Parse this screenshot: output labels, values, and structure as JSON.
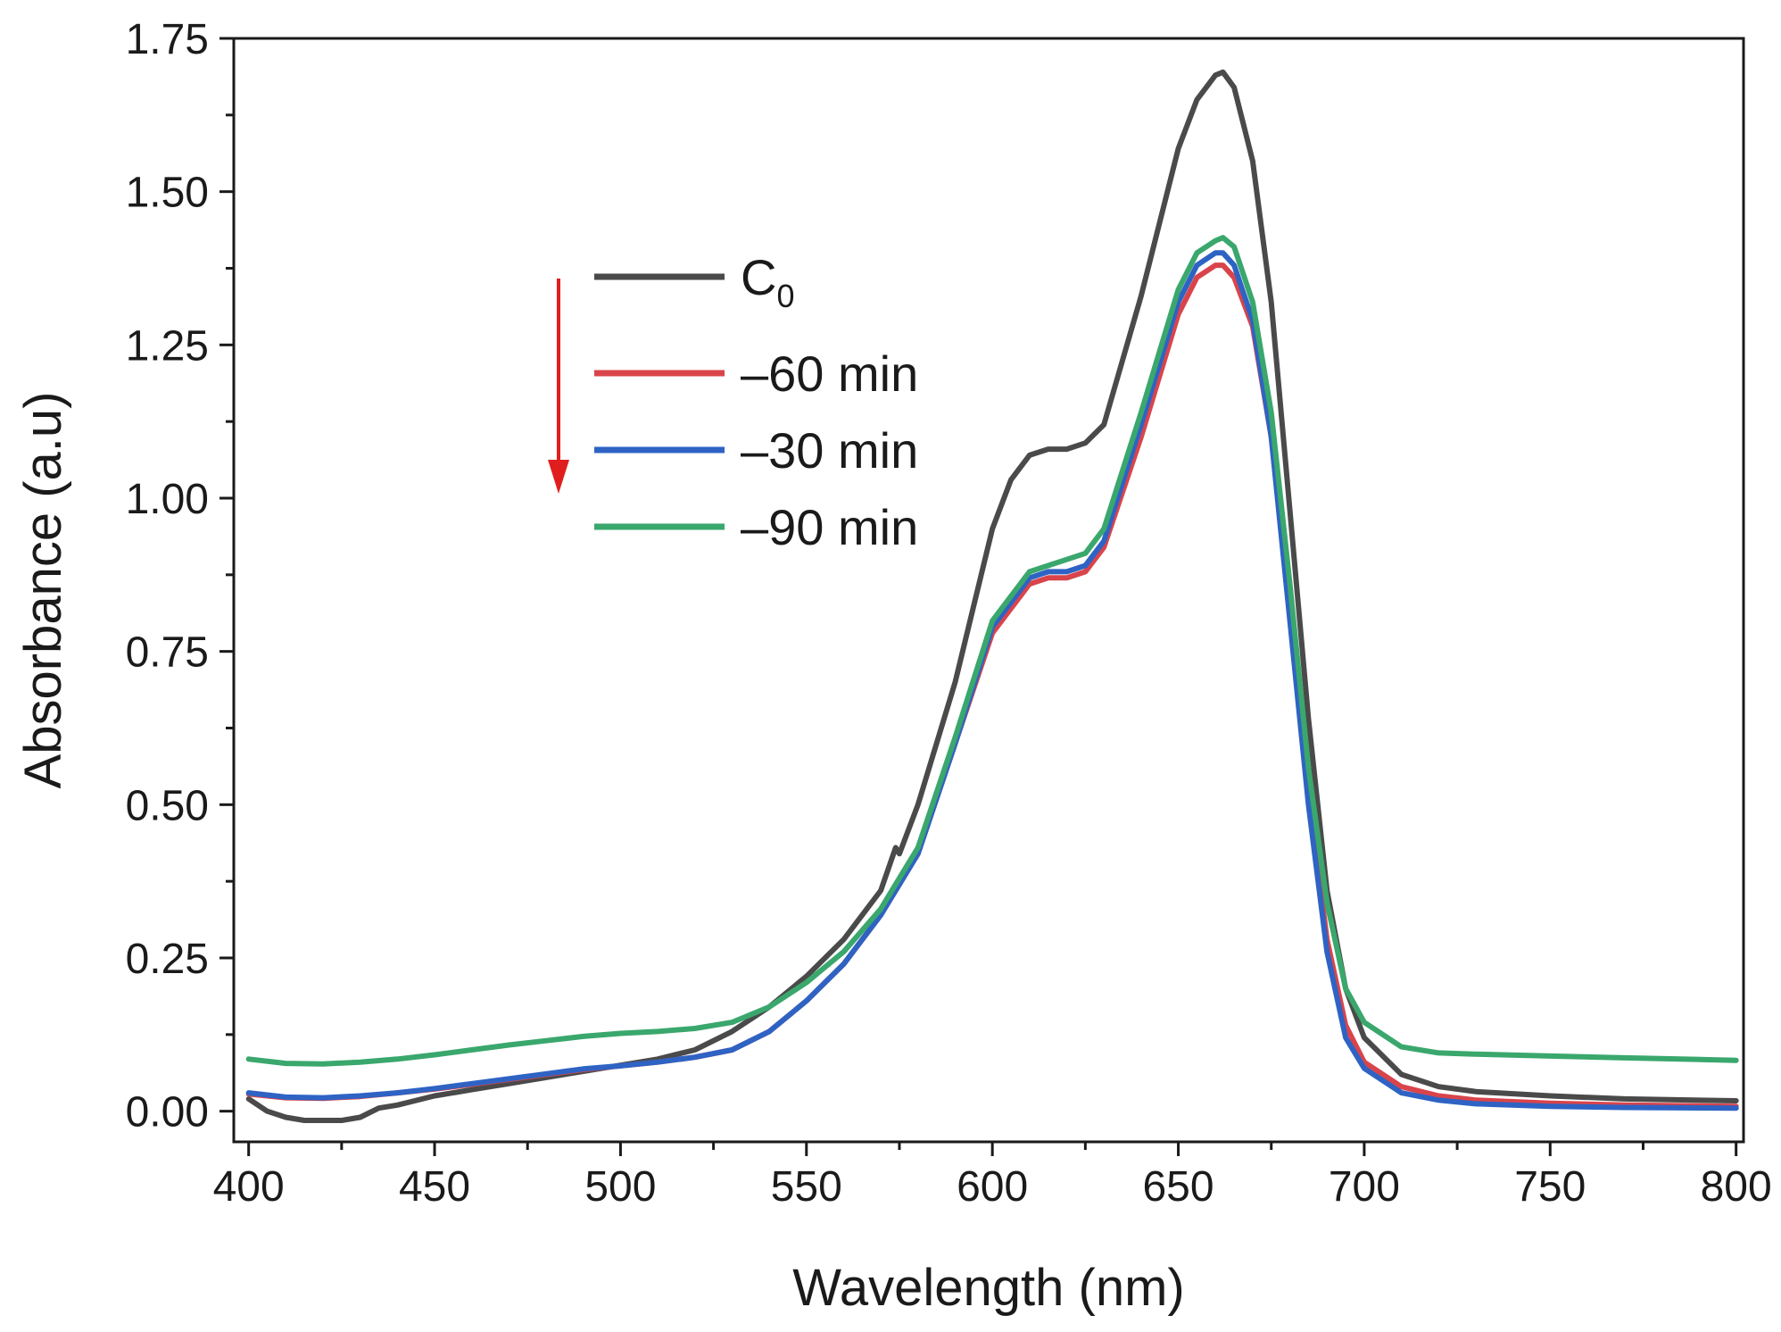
{
  "chart_data": {
    "type": "line",
    "title": "",
    "xlabel": "Wavelength (nm)",
    "ylabel": "Absorbance (a.u)",
    "xlim": [
      396,
      802
    ],
    "ylim": [
      -0.05,
      1.75
    ],
    "xticks": [
      400,
      450,
      500,
      550,
      600,
      650,
      700,
      750,
      800
    ],
    "xtick_labels": [
      "400",
      "450",
      "500",
      "550",
      "600",
      "650",
      "700",
      "750",
      "800"
    ],
    "yticks": [
      0,
      0.25,
      0.5,
      0.75,
      1.0,
      1.25,
      1.5,
      1.75
    ],
    "ytick_labels": [
      "0.00",
      "0.25",
      "0.50",
      "0.75",
      "1.00",
      "1.25",
      "1.50",
      "1.75"
    ],
    "grid": false,
    "legend_position": "upper-left",
    "legend_arrow": "downward red arrow beside legend",
    "series": [
      {
        "name": "C",
        "subscript": "0",
        "color": "#4a4a4a",
        "x": [
          400,
          405,
          410,
          415,
          420,
          425,
          430,
          435,
          440,
          450,
          460,
          470,
          480,
          490,
          500,
          510,
          520,
          530,
          540,
          550,
          560,
          570,
          574,
          575,
          580,
          590,
          600,
          605,
          610,
          615,
          620,
          625,
          630,
          640,
          650,
          655,
          660,
          662,
          665,
          670,
          675,
          680,
          685,
          690,
          695,
          700,
          710,
          720,
          730,
          750,
          770,
          800
        ],
        "y": [
          0.02,
          0.0,
          -0.01,
          -0.015,
          -0.015,
          -0.015,
          -0.01,
          0.005,
          0.01,
          0.025,
          0.035,
          0.045,
          0.055,
          0.065,
          0.075,
          0.085,
          0.1,
          0.13,
          0.17,
          0.22,
          0.28,
          0.36,
          0.43,
          0.42,
          0.5,
          0.7,
          0.95,
          1.03,
          1.07,
          1.08,
          1.08,
          1.09,
          1.12,
          1.33,
          1.57,
          1.65,
          1.69,
          1.695,
          1.67,
          1.55,
          1.32,
          0.98,
          0.64,
          0.36,
          0.2,
          0.12,
          0.06,
          0.04,
          0.032,
          0.025,
          0.02,
          0.017
        ]
      },
      {
        "name": "–60 min",
        "color": "#d9444b",
        "x": [
          400,
          410,
          420,
          430,
          440,
          450,
          460,
          470,
          480,
          490,
          500,
          510,
          520,
          530,
          540,
          550,
          560,
          570,
          580,
          590,
          600,
          610,
          615,
          620,
          625,
          630,
          640,
          650,
          655,
          660,
          662,
          665,
          670,
          675,
          680,
          685,
          690,
          695,
          700,
          710,
          720,
          730,
          750,
          770,
          800
        ],
        "y": [
          0.028,
          0.022,
          0.021,
          0.024,
          0.03,
          0.036,
          0.044,
          0.052,
          0.06,
          0.068,
          0.074,
          0.08,
          0.088,
          0.1,
          0.13,
          0.18,
          0.24,
          0.32,
          0.42,
          0.6,
          0.78,
          0.86,
          0.87,
          0.87,
          0.88,
          0.92,
          1.1,
          1.3,
          1.36,
          1.38,
          1.38,
          1.36,
          1.28,
          1.1,
          0.82,
          0.52,
          0.28,
          0.14,
          0.08,
          0.04,
          0.025,
          0.018,
          0.013,
          0.01,
          0.008
        ]
      },
      {
        "name": "–30 min",
        "color": "#2e63c4",
        "x": [
          400,
          410,
          420,
          430,
          440,
          450,
          460,
          470,
          480,
          490,
          500,
          510,
          520,
          530,
          540,
          550,
          560,
          570,
          580,
          590,
          600,
          610,
          615,
          620,
          625,
          630,
          640,
          650,
          655,
          660,
          662,
          665,
          670,
          675,
          680,
          685,
          690,
          695,
          700,
          710,
          720,
          730,
          750,
          770,
          800
        ],
        "y": [
          0.03,
          0.023,
          0.022,
          0.025,
          0.03,
          0.037,
          0.045,
          0.053,
          0.061,
          0.069,
          0.074,
          0.08,
          0.088,
          0.1,
          0.13,
          0.18,
          0.24,
          0.32,
          0.42,
          0.6,
          0.79,
          0.87,
          0.88,
          0.88,
          0.89,
          0.93,
          1.12,
          1.32,
          1.38,
          1.4,
          1.4,
          1.38,
          1.29,
          1.1,
          0.8,
          0.5,
          0.26,
          0.12,
          0.07,
          0.03,
          0.018,
          0.012,
          0.008,
          0.006,
          0.005
        ]
      },
      {
        "name": "–90 min",
        "color": "#3aa76d",
        "x": [
          400,
          410,
          420,
          430,
          440,
          450,
          460,
          470,
          480,
          490,
          500,
          510,
          520,
          530,
          540,
          550,
          560,
          570,
          580,
          590,
          600,
          610,
          615,
          620,
          625,
          630,
          640,
          650,
          655,
          660,
          662,
          665,
          670,
          675,
          680,
          685,
          690,
          695,
          700,
          710,
          720,
          730,
          750,
          770,
          800
        ],
        "y": [
          0.085,
          0.078,
          0.077,
          0.08,
          0.085,
          0.092,
          0.1,
          0.108,
          0.115,
          0.122,
          0.127,
          0.13,
          0.135,
          0.145,
          0.17,
          0.21,
          0.26,
          0.33,
          0.43,
          0.61,
          0.8,
          0.88,
          0.89,
          0.9,
          0.91,
          0.95,
          1.14,
          1.34,
          1.4,
          1.42,
          1.425,
          1.41,
          1.32,
          1.14,
          0.86,
          0.56,
          0.34,
          0.2,
          0.145,
          0.105,
          0.095,
          0.093,
          0.09,
          0.087,
          0.083
        ]
      }
    ]
  }
}
